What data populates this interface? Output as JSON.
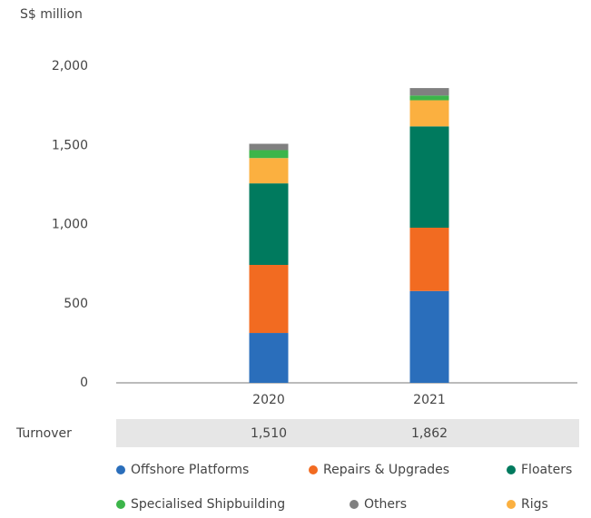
{
  "chart_data": {
    "type": "stacked_bar",
    "y_label": "S$ million",
    "categories": [
      "2020",
      "2021"
    ],
    "series": [
      {
        "name": "Offshore Platforms",
        "color": "#2a6ebb",
        "values": [
          315,
          580
        ]
      },
      {
        "name": "Repairs & Upgrades",
        "color": "#f26b21",
        "values": [
          430,
          400
        ]
      },
      {
        "name": "Floaters",
        "color": "#007a5e",
        "values": [
          515,
          640
        ]
      },
      {
        "name": "Rigs",
        "color": "#fbb040",
        "values": [
          160,
          165
        ]
      },
      {
        "name": "Specialised Shipbuilding",
        "color": "#3cb54a",
        "values": [
          50,
          30
        ]
      },
      {
        "name": "Others",
        "color": "#808080",
        "values": [
          40,
          47
        ]
      }
    ],
    "ylim": [
      0,
      2000
    ],
    "yticks": [
      0,
      500,
      {
        "value": 1000,
        "label": "1,000"
      },
      {
        "value": 1500,
        "label": "1,500"
      },
      {
        "value": 2000,
        "label": "2,000"
      }
    ],
    "totals": {
      "label": "Turnover",
      "values": [
        1510,
        1862
      ],
      "value_labels": [
        "1,510",
        "1,862"
      ]
    }
  }
}
